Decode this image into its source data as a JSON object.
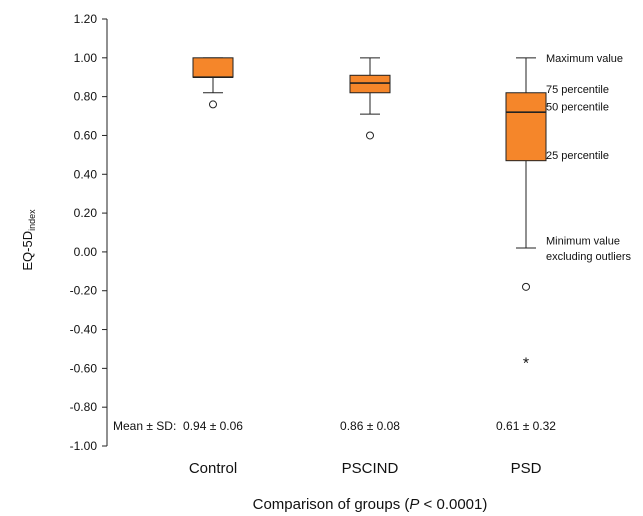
{
  "chart_data": {
    "type": "box",
    "ylabel": "EQ-5D",
    "ylabel_subscript": "index",
    "xlabel_prefix": "Comparison of groups (",
    "xlabel_p": "P",
    "xlabel_suffix": " < 0.0001)",
    "ylim": [
      -1.0,
      1.2
    ],
    "yticks": [
      "1.20",
      "1.00",
      "0.80",
      "0.60",
      "0.40",
      "0.20",
      "0.00",
      "-0.20",
      "-0.40",
      "-0.60",
      "-0.80",
      "-1.00"
    ],
    "categories": [
      "Control",
      "PSCIND",
      "PSD"
    ],
    "boxes": [
      {
        "name": "Control",
        "whisker_low": 0.82,
        "q1": 0.9,
        "median": 0.9,
        "q3": 1.0,
        "whisker_high": 1.0,
        "outliers_circle": [
          0.76
        ],
        "outliers_star": []
      },
      {
        "name": "PSCIND",
        "whisker_low": 0.71,
        "q1": 0.82,
        "median": 0.87,
        "q3": 0.91,
        "whisker_high": 1.0,
        "outliers_circle": [
          0.6
        ],
        "outliers_star": []
      },
      {
        "name": "PSD",
        "whisker_low": 0.02,
        "q1": 0.47,
        "median": 0.72,
        "q3": 0.82,
        "whisker_high": 1.0,
        "outliers_circle": [
          -0.18
        ],
        "outliers_star": [
          -0.56
        ]
      }
    ],
    "mean_sd_prefix": "Mean ± SD:",
    "mean_sd": [
      "0.94 ± 0.06",
      "0.86 ± 0.08",
      "0.61 ± 0.32"
    ],
    "annotations": [
      {
        "text": "Maximum value",
        "y": 1.0
      },
      {
        "text": "75 percentile",
        "y": 0.84
      },
      {
        "text": "50 percentile",
        "y": 0.75
      },
      {
        "text": "25 percentile",
        "y": 0.5
      },
      {
        "text": "Minimum value",
        "y": 0.06
      },
      {
        "text": "excluding outliers",
        "y": -0.02
      }
    ],
    "box_color": "#f5862a",
    "grid": false
  }
}
